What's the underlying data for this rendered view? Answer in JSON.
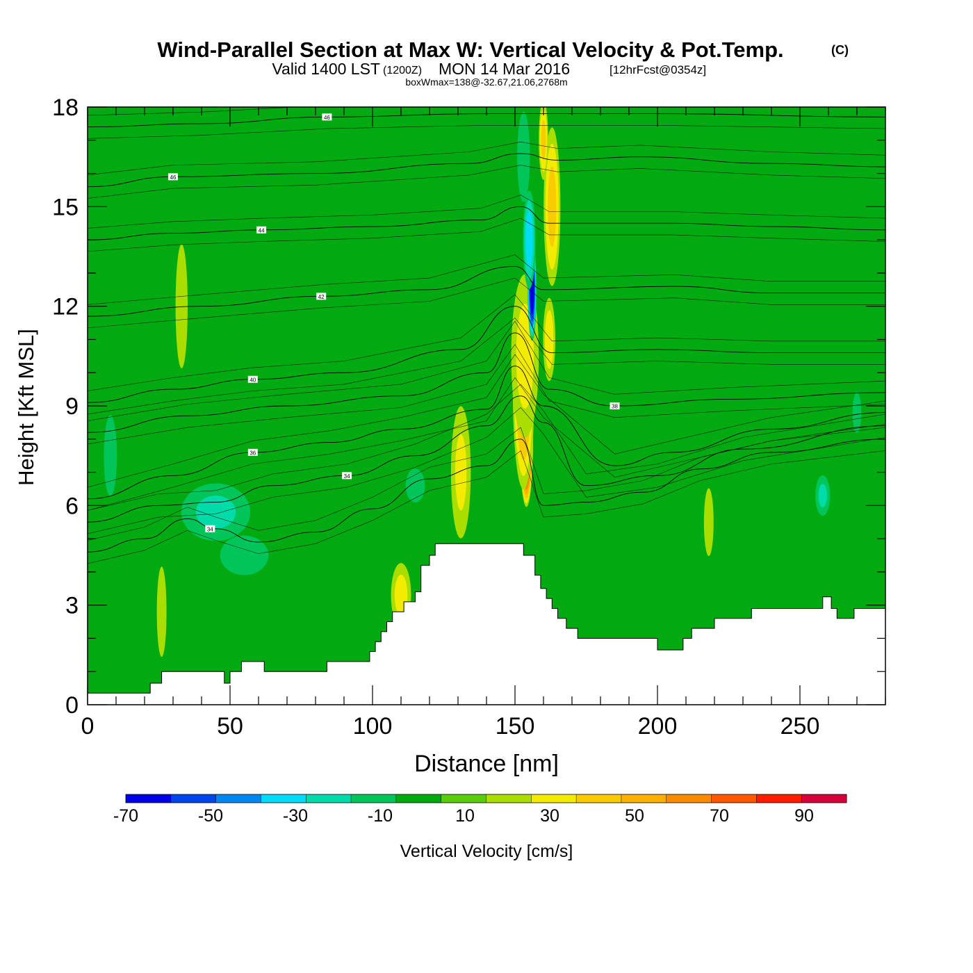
{
  "chart_data": {
    "type": "heatmap",
    "title": "Wind-Parallel Section at Max W: Vertical Velocity & Pot.Temp.",
    "title_mark": "(C)",
    "subtitle": {
      "valid": "Valid 1400 LST",
      "utc": "(1200Z)",
      "date": "MON 14 Mar 2016",
      "fcst": "[12hrFcst@0354z]"
    },
    "subtitle2": "boxWmax=138@-32.67,21.06,2768m",
    "xlabel": "Distance [nm]",
    "ylabel": "Height [Kft MSL]",
    "xlim": [
      0,
      280
    ],
    "ylim": [
      0,
      18
    ],
    "xticks": [
      0,
      50,
      100,
      150,
      200,
      250
    ],
    "yticks": [
      0,
      3,
      6,
      9,
      12,
      15,
      18
    ],
    "colorbar": {
      "label": "Vertical Velocity [cm/s]",
      "bounds": [
        -70,
        100
      ],
      "ticks": [
        -70,
        -50,
        -30,
        -10,
        10,
        30,
        50,
        70,
        90
      ],
      "colors": [
        "#0000e6",
        "#0044ee",
        "#0088f0",
        "#00ddf5",
        "#00dbaa",
        "#00c55a",
        "#02aa12",
        "#5acc08",
        "#aadd00",
        "#f4ec00",
        "#f8cc00",
        "#fcb000",
        "#fc8a00",
        "#ff5800",
        "#ff1a00",
        "#d8003a"
      ]
    },
    "background_color": "#02aa12",
    "terrain": [
      [
        0,
        0.35
      ],
      [
        22,
        0.35
      ],
      [
        22,
        0.65
      ],
      [
        26,
        0.65
      ],
      [
        26,
        1.0
      ],
      [
        48,
        1.0
      ],
      [
        48,
        0.65
      ],
      [
        50,
        0.65
      ],
      [
        50,
        1.0
      ],
      [
        54,
        1.0
      ],
      [
        54,
        1.3
      ],
      [
        62,
        1.3
      ],
      [
        62,
        1.0
      ],
      [
        84,
        1.0
      ],
      [
        84,
        1.3
      ],
      [
        99,
        1.3
      ],
      [
        99,
        1.6
      ],
      [
        101,
        1.6
      ],
      [
        101,
        1.9
      ],
      [
        103,
        1.9
      ],
      [
        103,
        2.2
      ],
      [
        105,
        2.2
      ],
      [
        105,
        2.5
      ],
      [
        107,
        2.5
      ],
      [
        107,
        2.8
      ],
      [
        111,
        2.8
      ],
      [
        111,
        3.1
      ],
      [
        115,
        3.1
      ],
      [
        115,
        3.4
      ],
      [
        117,
        3.4
      ],
      [
        117,
        4.2
      ],
      [
        120,
        4.2
      ],
      [
        120,
        4.5
      ],
      [
        122,
        4.5
      ],
      [
        122,
        4.85
      ],
      [
        153,
        4.85
      ],
      [
        153,
        4.5
      ],
      [
        157,
        4.5
      ],
      [
        157,
        3.9
      ],
      [
        159,
        3.9
      ],
      [
        159,
        3.5
      ],
      [
        161,
        3.5
      ],
      [
        161,
        3.2
      ],
      [
        163,
        3.2
      ],
      [
        163,
        2.9
      ],
      [
        165,
        2.9
      ],
      [
        165,
        2.6
      ],
      [
        168,
        2.6
      ],
      [
        168,
        2.3
      ],
      [
        172,
        2.3
      ],
      [
        172,
        2.0
      ],
      [
        200,
        2.0
      ],
      [
        200,
        1.65
      ],
      [
        209,
        1.65
      ],
      [
        209,
        2.0
      ],
      [
        212,
        2.0
      ],
      [
        212,
        2.3
      ],
      [
        220,
        2.3
      ],
      [
        220,
        2.6
      ],
      [
        233,
        2.6
      ],
      [
        233,
        2.9
      ],
      [
        258,
        2.9
      ],
      [
        258,
        3.25
      ],
      [
        261,
        3.25
      ],
      [
        261,
        2.9
      ],
      [
        263,
        2.9
      ],
      [
        263,
        2.6
      ],
      [
        269,
        2.6
      ],
      [
        269,
        2.9
      ],
      [
        280,
        2.9
      ]
    ],
    "w_features": [
      {
        "x": 154,
        "y": 8.0,
        "sx": 2.4,
        "sy": 2.1,
        "w": 95
      },
      {
        "x": 153,
        "y": 9.5,
        "sx": 4.0,
        "sy": 3.2,
        "w": 45
      },
      {
        "x": 153.5,
        "y": 10.5,
        "sx": 5.5,
        "sy": 2.8,
        "w": 22
      },
      {
        "x": 163,
        "y": 15.0,
        "sx": 3.2,
        "sy": 2.6,
        "w": 32
      },
      {
        "x": 160,
        "y": 17.0,
        "sx": 1.8,
        "sy": 1.3,
        "w": 32
      },
      {
        "x": 162,
        "y": 11.0,
        "sx": 2.4,
        "sy": 1.4,
        "w": 25
      },
      {
        "x": 156,
        "y": 12.5,
        "sx": 1.6,
        "sy": 1.6,
        "w": -70
      },
      {
        "x": 155,
        "y": 14.0,
        "sx": 2.4,
        "sy": 1.6,
        "w": -35
      },
      {
        "x": 153,
        "y": 16.5,
        "sx": 2.6,
        "sy": 1.6,
        "w": -18
      },
      {
        "x": 131,
        "y": 7.0,
        "sx": 4.0,
        "sy": 2.3,
        "w": 20
      },
      {
        "x": 110,
        "y": 3.3,
        "sx": 4.0,
        "sy": 1.1,
        "w": 22
      },
      {
        "x": 26,
        "y": 2.8,
        "sx": 2.0,
        "sy": 1.6,
        "w": 18
      },
      {
        "x": 33,
        "y": 12.0,
        "sx": 2.5,
        "sy": 2.2,
        "w": 18
      },
      {
        "x": 218,
        "y": 5.5,
        "sx": 2.0,
        "sy": 1.2,
        "w": 18
      },
      {
        "x": 45,
        "y": 5.8,
        "sx": 14,
        "sy": 1.0,
        "w": -20
      },
      {
        "x": 55,
        "y": 4.5,
        "sx": 10,
        "sy": 0.7,
        "w": -18
      },
      {
        "x": 115,
        "y": 6.6,
        "sx": 4.0,
        "sy": 0.6,
        "w": -18
      },
      {
        "x": 258,
        "y": 6.3,
        "sx": 3.0,
        "sy": 0.7,
        "w": -20
      },
      {
        "x": 270,
        "y": 8.8,
        "sx": 2.0,
        "sy": 0.8,
        "w": -12
      },
      {
        "x": 8,
        "y": 7.5,
        "sx": 3.0,
        "sy": 1.6,
        "w": -12
      }
    ],
    "theta_contours": [
      {
        "label": "34",
        "lx": 43,
        "ly": 5.3,
        "points": [
          [
            0,
            4.6
          ],
          [
            20,
            5.0
          ],
          [
            35,
            5.6
          ],
          [
            45,
            5.3
          ],
          [
            60,
            4.9
          ],
          [
            80,
            5.2
          ],
          [
            100,
            5.9
          ],
          [
            120,
            6.8
          ],
          [
            140,
            7.2
          ],
          [
            152,
            8.0
          ],
          [
            160,
            6.0
          ],
          [
            175,
            6.1
          ],
          [
            195,
            6.4
          ],
          [
            215,
            7.1
          ],
          [
            240,
            7.6
          ],
          [
            280,
            8.0
          ]
        ]
      },
      {
        "label": "34",
        "lx": 91,
        "ly": 6.9,
        "points": [
          [
            0,
            5.5
          ],
          [
            25,
            6.0
          ],
          [
            45,
            6.1
          ],
          [
            65,
            6.6
          ],
          [
            91,
            6.9
          ],
          [
            115,
            7.5
          ],
          [
            140,
            8.4
          ],
          [
            152,
            9.3
          ],
          [
            160,
            8.5
          ],
          [
            175,
            6.6
          ],
          [
            200,
            6.9
          ],
          [
            230,
            7.7
          ],
          [
            280,
            8.4
          ]
        ]
      },
      {
        "label": "36",
        "lx": 58,
        "ly": 7.6,
        "points": [
          [
            0,
            6.2
          ],
          [
            30,
            6.9
          ],
          [
            58,
            7.6
          ],
          [
            85,
            7.9
          ],
          [
            110,
            8.3
          ],
          [
            140,
            8.9
          ],
          [
            150,
            10.2
          ],
          [
            160,
            9.0
          ],
          [
            185,
            7.2
          ],
          [
            205,
            7.6
          ],
          [
            240,
            8.3
          ],
          [
            280,
            8.8
          ]
        ]
      },
      {
        "label": "38",
        "lx": 185,
        "ly": 9.0,
        "points": [
          [
            0,
            8.2
          ],
          [
            35,
            8.7
          ],
          [
            70,
            9.0
          ],
          [
            110,
            9.3
          ],
          [
            140,
            10.0
          ],
          [
            150,
            11.2
          ],
          [
            162,
            9.5
          ],
          [
            185,
            9.0
          ],
          [
            225,
            9.2
          ],
          [
            280,
            9.4
          ]
        ]
      },
      {
        "label": "40",
        "lx": 58,
        "ly": 9.8,
        "points": [
          [
            0,
            9.1
          ],
          [
            30,
            9.5
          ],
          [
            58,
            9.8
          ],
          [
            90,
            10.0
          ],
          [
            131,
            10.7
          ],
          [
            150,
            12.0
          ],
          [
            163,
            10.6
          ],
          [
            200,
            10.7
          ],
          [
            240,
            10.6
          ],
          [
            280,
            10.6
          ]
        ]
      },
      {
        "label": "42",
        "lx": 82,
        "ly": 12.3,
        "points": [
          [
            0,
            11.7
          ],
          [
            40,
            12.0
          ],
          [
            82,
            12.3
          ],
          [
            120,
            12.5
          ],
          [
            150,
            13.2
          ],
          [
            160,
            12.5
          ],
          [
            206,
            12.6
          ],
          [
            240,
            12.4
          ],
          [
            280,
            12.4
          ]
        ]
      },
      {
        "label": "44",
        "lx": 61,
        "ly": 14.3,
        "points": [
          [
            0,
            14.0
          ],
          [
            30,
            14.2
          ],
          [
            61,
            14.3
          ],
          [
            100,
            14.4
          ],
          [
            138,
            14.6
          ],
          [
            152,
            15.0
          ],
          [
            162,
            14.5
          ],
          [
            205,
            14.5
          ],
          [
            240,
            14.4
          ],
          [
            280,
            14.3
          ]
        ]
      },
      {
        "label": "46",
        "lx": 30,
        "ly": 15.9,
        "points": [
          [
            0,
            15.6
          ],
          [
            30,
            15.9
          ],
          [
            80,
            16.0
          ],
          [
            134,
            16.3
          ],
          [
            152,
            16.6
          ],
          [
            165,
            16.4
          ],
          [
            194,
            16.5
          ],
          [
            240,
            16.3
          ],
          [
            280,
            16.2
          ]
        ]
      },
      {
        "label": "46",
        "lx": 84,
        "ly": 17.7,
        "points": [
          [
            0,
            17.4
          ],
          [
            40,
            17.5
          ],
          [
            84,
            17.7
          ],
          [
            140,
            17.8
          ],
          [
            200,
            17.8
          ],
          [
            280,
            17.7
          ]
        ]
      }
    ]
  }
}
